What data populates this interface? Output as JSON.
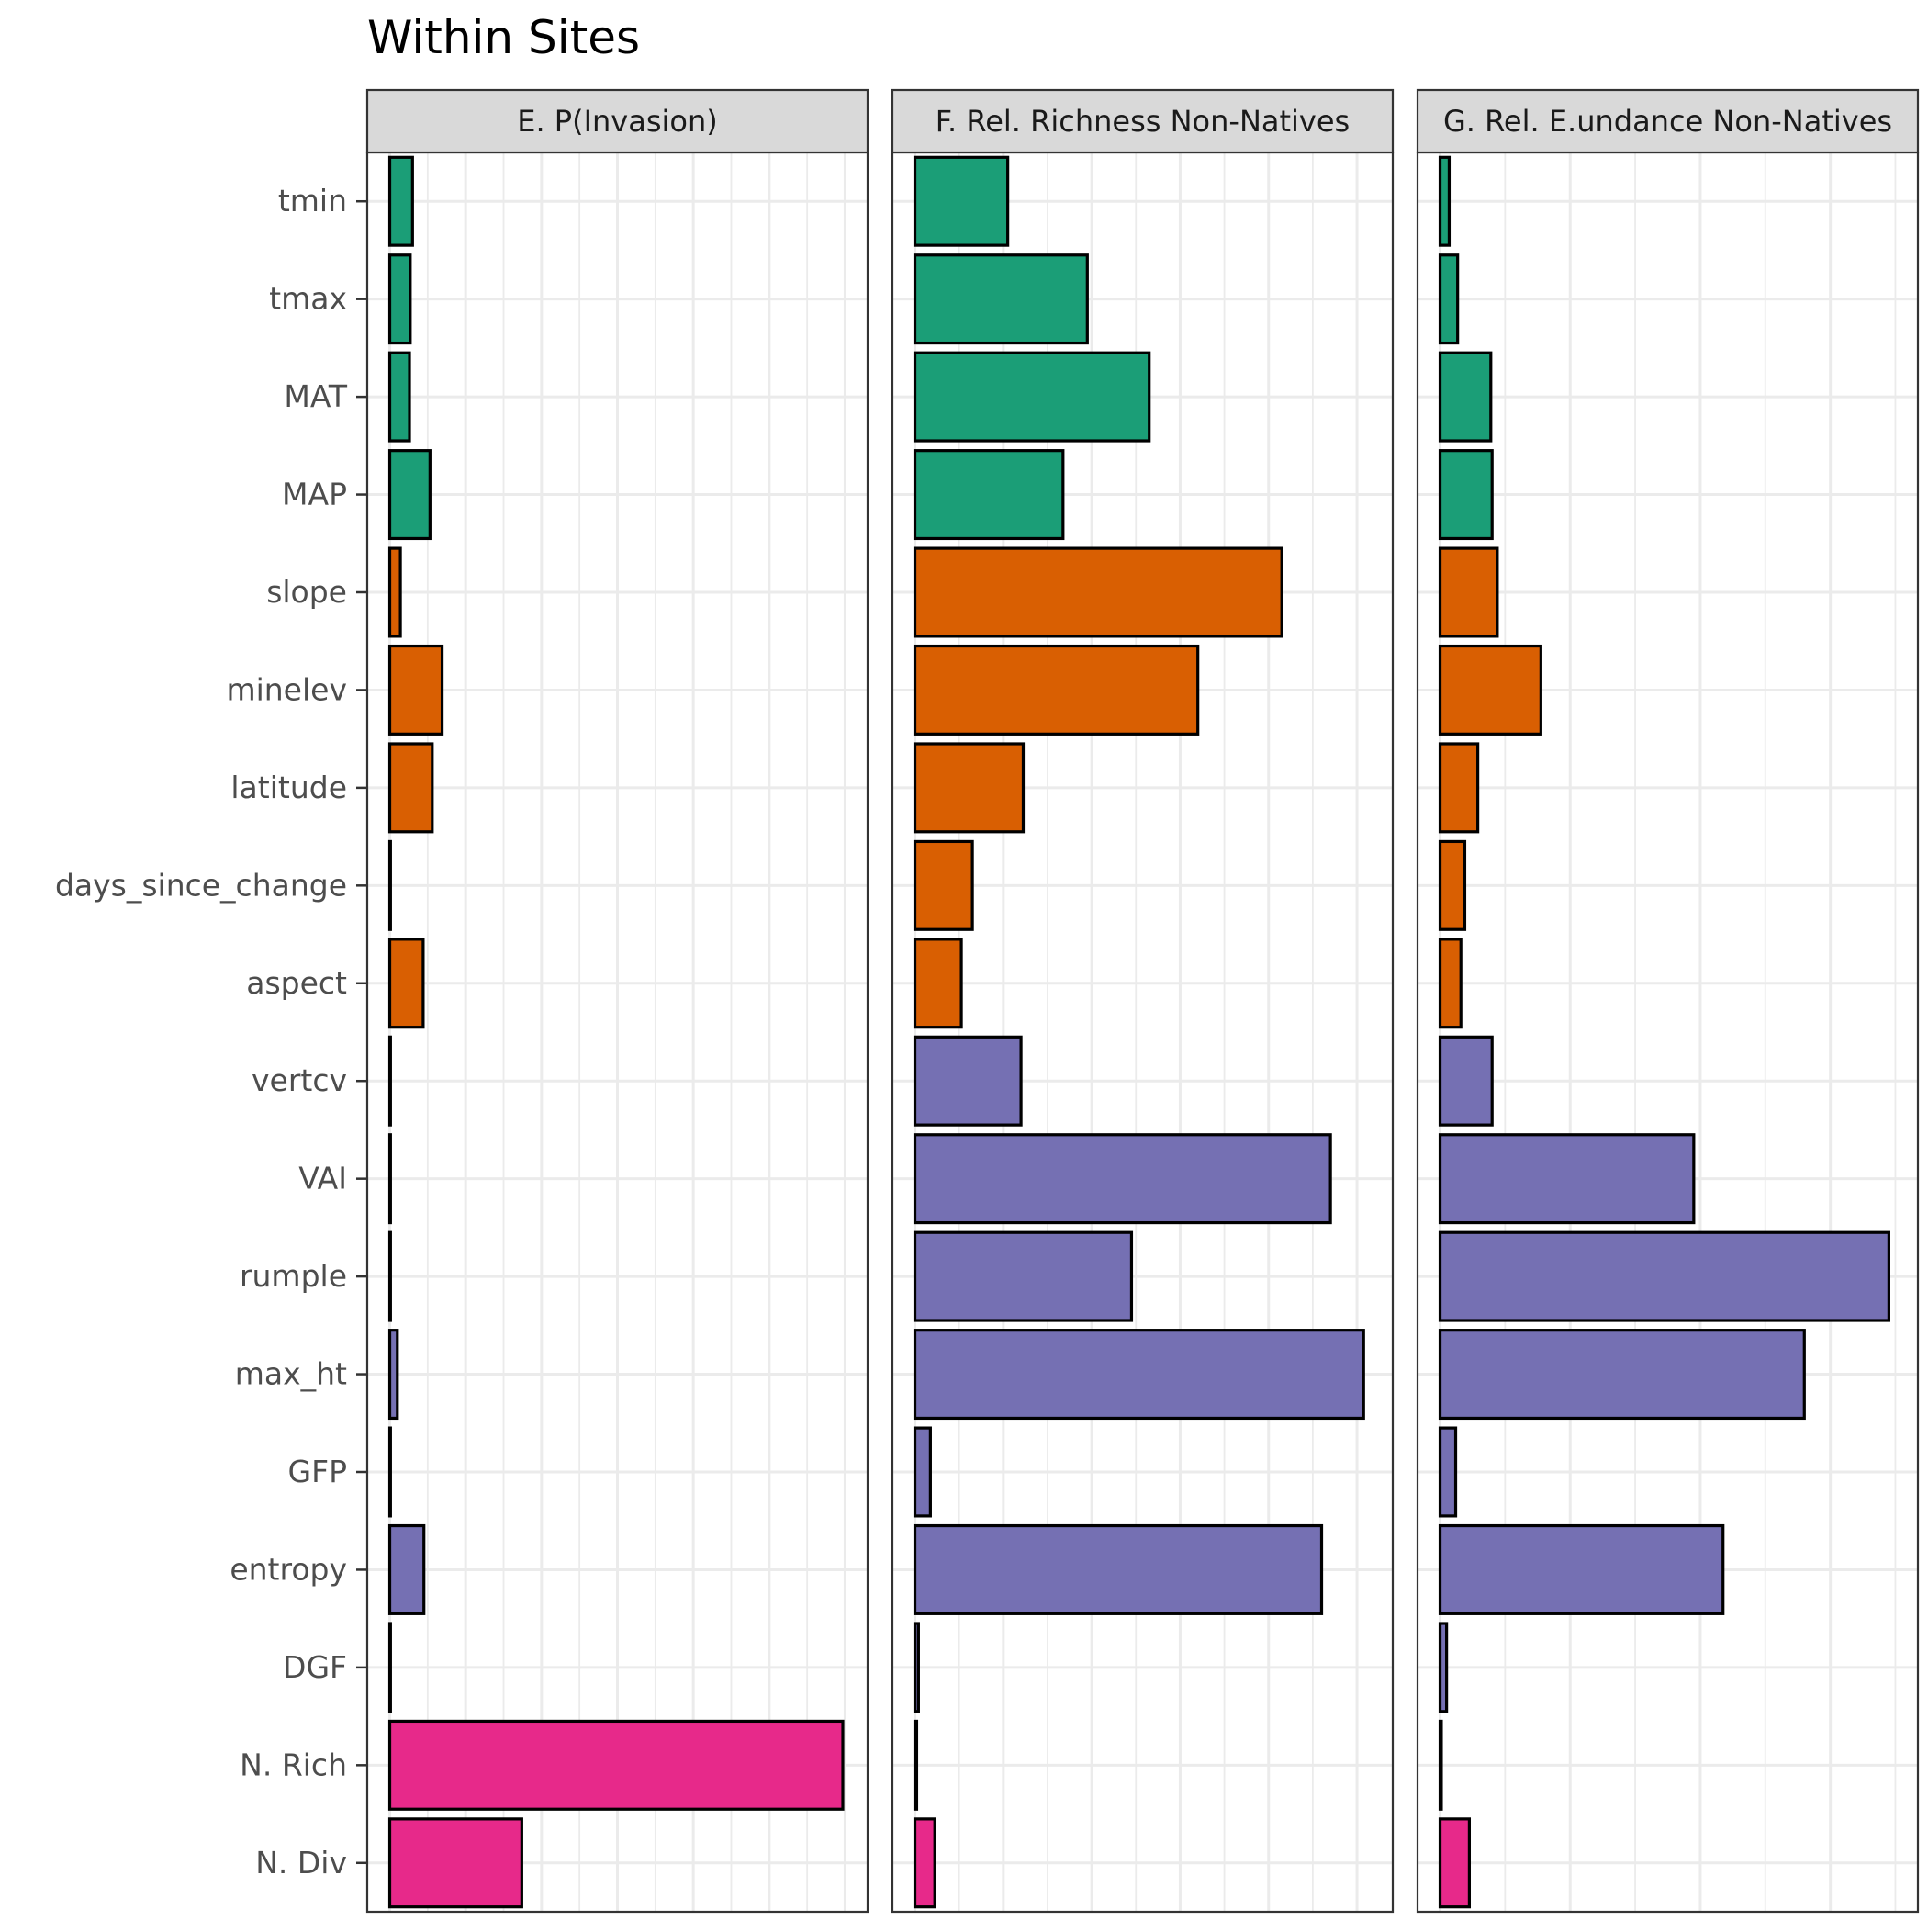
{
  "chart_data": {
    "type": "bar",
    "orientation": "horizontal",
    "faceted": true,
    "title": "Within Sites",
    "xlabel": "",
    "ylabel": "",
    "grid": true,
    "categories": [
      "tmin",
      "tmax",
      "MAT",
      "MAP",
      "slope",
      "minelev",
      "latitude",
      "days_since_change",
      "aspect",
      "vertcv",
      "VAI",
      "rumple",
      "max_ht",
      "GFP",
      "entropy",
      "DGF",
      "N. Rich",
      "N. Div"
    ],
    "category_groups": [
      "climate",
      "climate",
      "climate",
      "climate",
      "topo",
      "topo",
      "topo",
      "topo",
      "topo",
      "structure",
      "structure",
      "structure",
      "structure",
      "structure",
      "structure",
      "structure",
      "native",
      "native"
    ],
    "group_colors": {
      "climate": "#1b9e77",
      "topo": "#d95f02",
      "structure": "#7570b3",
      "native": "#e7298a"
    },
    "panels": [
      {
        "strip_label": "E. P(Invasion)",
        "xlim": [
          0,
          60
        ],
        "values": [
          3,
          2.7,
          2.6,
          5.3,
          1.4,
          6.9,
          5.6,
          0.1,
          4.4,
          0.1,
          0.1,
          0.1,
          1.0,
          0.1,
          4.5,
          0.1,
          59.7,
          17.4
        ]
      },
      {
        "strip_label": "F. Rel. Richness Non-Natives",
        "xlim": [
          0,
          10.3
        ],
        "values": [
          2.1,
          3.9,
          5.3,
          3.35,
          8.3,
          6.4,
          2.45,
          1.3,
          1.05,
          2.4,
          9.4,
          4.9,
          10.15,
          0.35,
          9.2,
          0.08,
          0.04,
          0.45
        ]
      },
      {
        "strip_label": "G. Rel. E.undance Non-Natives",
        "xlim": [
          0,
          7
        ],
        "values": [
          0.14,
          0.27,
          0.78,
          0.8,
          0.88,
          1.55,
          0.58,
          0.38,
          0.32,
          0.8,
          3.9,
          6.9,
          5.6,
          0.24,
          4.35,
          0.1,
          0.02,
          0.45
        ]
      }
    ]
  }
}
